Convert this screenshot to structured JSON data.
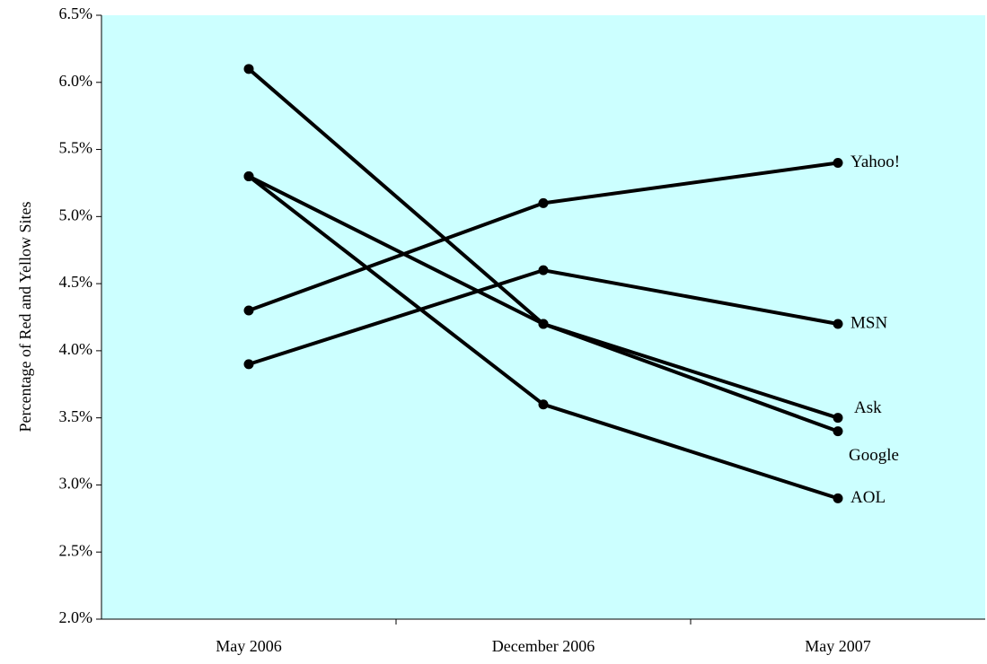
{
  "chart_data": {
    "type": "line",
    "categories": [
      "May 2006",
      "December 2006",
      "May 2007"
    ],
    "ylabel": "Percentage of Red and Yellow Sites",
    "xlabel": "",
    "ylim": [
      2.0,
      6.5
    ],
    "yticks": [
      2.0,
      2.5,
      3.0,
      3.5,
      4.0,
      4.5,
      5.0,
      5.5,
      6.0,
      6.5
    ],
    "ytick_labels": [
      "2.0%",
      "2.5%",
      "3.0%",
      "3.5%",
      "4.0%",
      "4.5%",
      "5.0%",
      "5.5%",
      "6.0%",
      "6.5%"
    ],
    "plot_background": "#ccffff",
    "line_color": "#000000",
    "grid": false,
    "legend": "none",
    "series": [
      {
        "name": "Yahoo!",
        "values": [
          4.3,
          5.1,
          5.4
        ]
      },
      {
        "name": "MSN",
        "values": [
          3.9,
          4.6,
          4.2
        ]
      },
      {
        "name": "Ask",
        "values": [
          5.3,
          4.2,
          3.5
        ]
      },
      {
        "name": "Google",
        "values": [
          6.1,
          4.2,
          3.4
        ]
      },
      {
        "name": "AOL",
        "values": [
          5.3,
          3.6,
          2.9
        ]
      }
    ]
  }
}
